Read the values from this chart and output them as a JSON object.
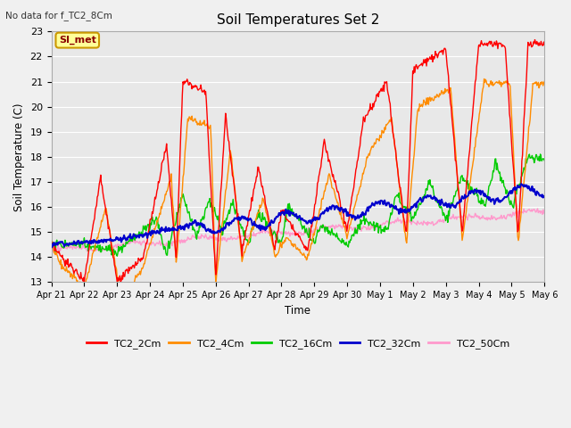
{
  "title": "Soil Temperatures Set 2",
  "subtitle": "No data for f_TC2_8Cm",
  "ylabel": "Soil Temperature (C)",
  "xlabel": "Time",
  "ylim": [
    13.0,
    23.0
  ],
  "yticks": [
    13.0,
    14.0,
    15.0,
    16.0,
    17.0,
    18.0,
    19.0,
    20.0,
    21.0,
    22.0,
    23.0
  ],
  "fig_facecolor": "#f0f0f0",
  "ax_facecolor": "#e8e8e8",
  "series_colors": {
    "TC2_2Cm": "#ff0000",
    "TC2_4Cm": "#ff8c00",
    "TC2_16Cm": "#00cc00",
    "TC2_32Cm": "#0000cc",
    "TC2_50Cm": "#ff99cc"
  },
  "legend_label": "SI_met",
  "legend_bg": "#ffff99",
  "legend_border": "#cc9900",
  "n_days": 15,
  "pts_per_day": 48,
  "peak_days": [
    1.5,
    2.0,
    3.5,
    4.0,
    4.7,
    5.3,
    6.3,
    7.0,
    8.3,
    9.5,
    10.2,
    11.0,
    12.0,
    13.0,
    13.8,
    14.5
  ],
  "peak_heights_2cm": [
    17.2,
    13.0,
    18.5,
    21.0,
    20.6,
    19.7,
    17.6,
    15.9,
    18.6,
    19.5,
    21.0,
    21.5,
    22.3,
    22.5,
    22.5,
    22.5
  ],
  "trough_days": [
    0.3,
    1.0,
    2.8,
    3.8,
    5.0,
    5.8,
    6.8,
    7.8,
    9.0,
    10.8,
    12.5,
    14.2
  ],
  "trough_heights_2cm": [
    14.0,
    13.1,
    14.0,
    14.0,
    13.2,
    14.2,
    14.3,
    14.25,
    15.1,
    14.8,
    15.0,
    14.8
  ]
}
